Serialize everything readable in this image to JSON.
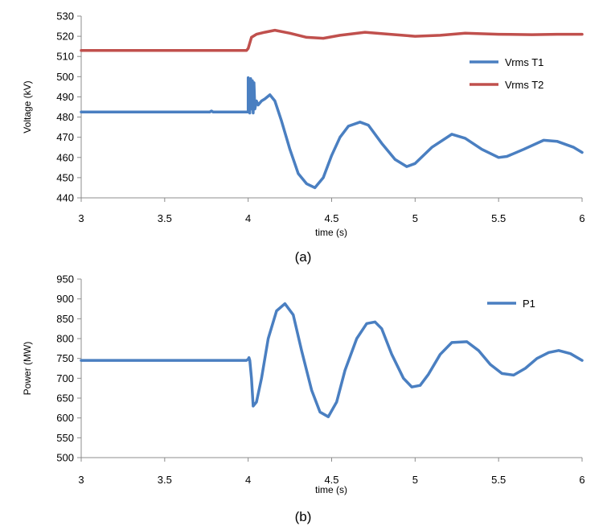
{
  "colors": {
    "series_blue": "#4a7fc1",
    "series_red": "#c0504d",
    "axis": "#8c8c8c"
  },
  "chart_data": [
    {
      "id": "a",
      "type": "line",
      "caption": "(a)",
      "xlabel": "time (s)",
      "ylabel": "Voltage (kV)",
      "xlim": [
        3,
        6
      ],
      "ylim": [
        440,
        530
      ],
      "xticks": [
        3,
        3.5,
        4,
        4.5,
        5,
        5.5,
        6
      ],
      "xtick_labels": [
        "3",
        "3.5",
        "4",
        "4.5",
        "5",
        "5.5",
        "6"
      ],
      "yticks": [
        440,
        450,
        460,
        470,
        480,
        490,
        500,
        510,
        520,
        530
      ],
      "grid": false,
      "legend": "right",
      "series": [
        {
          "name": "Vrms T1",
          "color": "#4a7fc1",
          "x": [
            3.0,
            3.5,
            3.77,
            3.78,
            3.79,
            4.0,
            4.0,
            4.01,
            4.015,
            4.02,
            4.025,
            4.03,
            4.035,
            4.04,
            4.05,
            4.06,
            4.08,
            4.1,
            4.13,
            4.16,
            4.2,
            4.25,
            4.3,
            4.35,
            4.4,
            4.45,
            4.5,
            4.55,
            4.6,
            4.67,
            4.72,
            4.8,
            4.88,
            4.95,
            5.0,
            5.1,
            5.22,
            5.3,
            5.4,
            5.5,
            5.55,
            5.65,
            5.77,
            5.85,
            5.95,
            6.0
          ],
          "y": [
            482.5,
            482.5,
            482.5,
            483.0,
            482.5,
            482.5,
            499.5,
            482.0,
            499.0,
            484.0,
            498.0,
            482.0,
            497.0,
            484.0,
            488.0,
            486.0,
            488.0,
            489.0,
            491.0,
            488.0,
            478.0,
            464.0,
            452.0,
            447.0,
            445.0,
            450.0,
            461.0,
            470.0,
            475.5,
            477.5,
            476.0,
            467.0,
            459.0,
            455.5,
            457.0,
            465.0,
            471.5,
            469.5,
            464.0,
            460.0,
            460.5,
            464.0,
            468.5,
            468.0,
            465.0,
            462.5
          ]
        },
        {
          "name": "Vrms T2",
          "color": "#c0504d",
          "x": [
            3.0,
            3.5,
            3.99,
            4.0,
            4.02,
            4.05,
            4.1,
            4.16,
            4.25,
            4.35,
            4.45,
            4.55,
            4.7,
            4.85,
            5.0,
            5.15,
            5.3,
            5.5,
            5.7,
            5.85,
            6.0
          ],
          "y": [
            513.0,
            513.0,
            513.0,
            514.0,
            519.5,
            521.0,
            522.0,
            523.0,
            521.5,
            519.5,
            519.0,
            520.5,
            522.0,
            521.0,
            520.0,
            520.5,
            521.5,
            521.0,
            520.8,
            521.0,
            521.0
          ]
        }
      ]
    },
    {
      "id": "b",
      "type": "line",
      "caption": "(b)",
      "xlabel": "time (s)",
      "ylabel": "Power (MW)",
      "xlim": [
        3,
        6
      ],
      "ylim": [
        500,
        950
      ],
      "xticks": [
        3,
        3.5,
        4,
        4.5,
        5,
        5.5,
        6
      ],
      "xtick_labels": [
        "3",
        "3.5",
        "4",
        "4.5",
        "5",
        "5.5",
        "6"
      ],
      "yticks": [
        500,
        550,
        600,
        650,
        700,
        750,
        800,
        850,
        900,
        950
      ],
      "grid": false,
      "legend": "top-right",
      "series": [
        {
          "name": "P1",
          "color": "#4a7fc1",
          "x": [
            3.0,
            3.5,
            3.99,
            4.0,
            4.005,
            4.01,
            4.02,
            4.03,
            4.05,
            4.08,
            4.12,
            4.17,
            4.22,
            4.27,
            4.32,
            4.38,
            4.43,
            4.48,
            4.53,
            4.58,
            4.65,
            4.71,
            4.76,
            4.8,
            4.86,
            4.93,
            4.98,
            5.03,
            5.08,
            5.15,
            5.22,
            5.31,
            5.38,
            5.45,
            5.52,
            5.59,
            5.66,
            5.73,
            5.8,
            5.86,
            5.93,
            6.0
          ],
          "y": [
            745.0,
            745.0,
            745.0,
            748.0,
            752.0,
            745.0,
            700.0,
            630.0,
            640.0,
            700.0,
            800.0,
            870.0,
            888.0,
            860.0,
            770.0,
            670.0,
            615.0,
            603.0,
            640.0,
            720.0,
            800.0,
            838.0,
            842.0,
            825.0,
            760.0,
            700.0,
            678.0,
            682.0,
            710.0,
            760.0,
            790.0,
            792.0,
            770.0,
            735.0,
            712.0,
            708.0,
            725.0,
            750.0,
            765.0,
            770.0,
            762.0,
            745.0
          ]
        }
      ]
    }
  ]
}
